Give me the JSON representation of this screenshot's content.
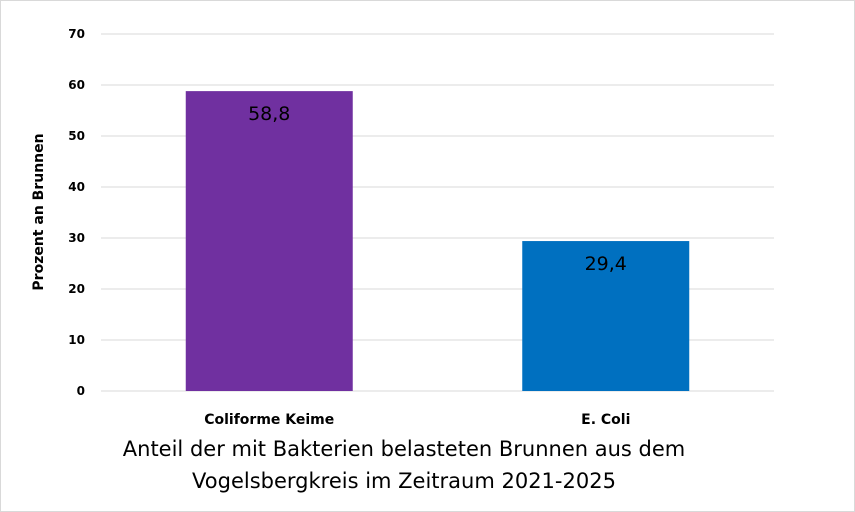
{
  "chart_data": {
    "type": "bar",
    "title_lines": [
      "Anteil der mit Bakterien belasteten Brunnen aus dem",
      "Vogelsbergkreis im Zeitraum 2021-2025"
    ],
    "xlabel": "",
    "ylabel": "Prozent an Brunnen",
    "categories": [
      "Coliforme Keime",
      "E. Coli"
    ],
    "values": [
      58.8,
      29.4
    ],
    "data_labels": [
      "58,8",
      "29,4"
    ],
    "colors": [
      "#7030A0",
      "#0070C0"
    ],
    "ylim": [
      0,
      70
    ],
    "yticks": [
      0,
      10,
      20,
      30,
      40,
      50,
      60,
      70
    ],
    "grid": true,
    "legend": "none"
  }
}
